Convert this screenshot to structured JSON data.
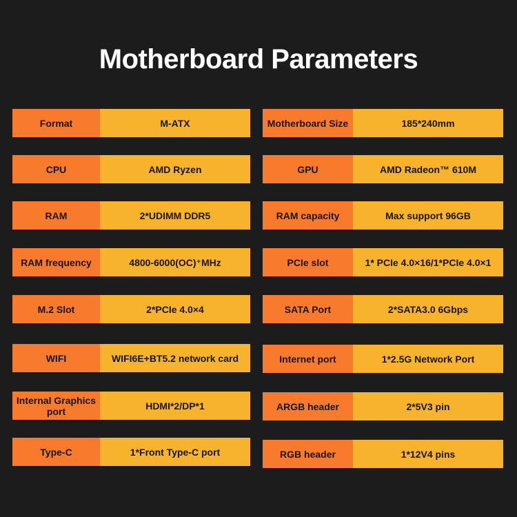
{
  "title": "Motherboard Parameters",
  "colors": {
    "background": "#1c1c1c",
    "label_cell": "#F87A2C",
    "value_cell": "#F8B32D"
  },
  "left": [
    {
      "label": "Format",
      "value": "M-ATX"
    },
    {
      "label": "CPU",
      "value": "AMD Ryzen"
    },
    {
      "label": "RAM",
      "value": "2*UDIMM DDR5"
    },
    {
      "label": "RAM frequency",
      "value": "4800-6000(OC)⁺MHz"
    },
    {
      "label": "M.2 Slot",
      "value": "2*PCIe 4.0×4"
    },
    {
      "label": "WIFI",
      "value": "WIFI6E+BT5.2 network card"
    },
    {
      "label": "Internal Graphics port",
      "value": "HDMI*2/DP*1"
    },
    {
      "label": "Type-C",
      "value": "1*Front Type-C port"
    }
  ],
  "right": [
    {
      "label": "Motherboard Size",
      "value": "185*240mm"
    },
    {
      "label": "GPU",
      "value": "AMD Radeon™ 610M"
    },
    {
      "label": "RAM capacity",
      "value": "Max support 96GB"
    },
    {
      "label": "PCIe slot",
      "value": "1* PCIe 4.0×16/1*PCIe 4.0×1"
    },
    {
      "label": "SATA Port",
      "value": "2*SATA3.0 6Gbps"
    },
    {
      "label": "Internet port",
      "value": "1*2.5G Network Port"
    },
    {
      "label": "ARGB header",
      "value": "2*5V3 pin"
    },
    {
      "label": "RGB header",
      "value": "1*12V4 pins"
    }
  ]
}
